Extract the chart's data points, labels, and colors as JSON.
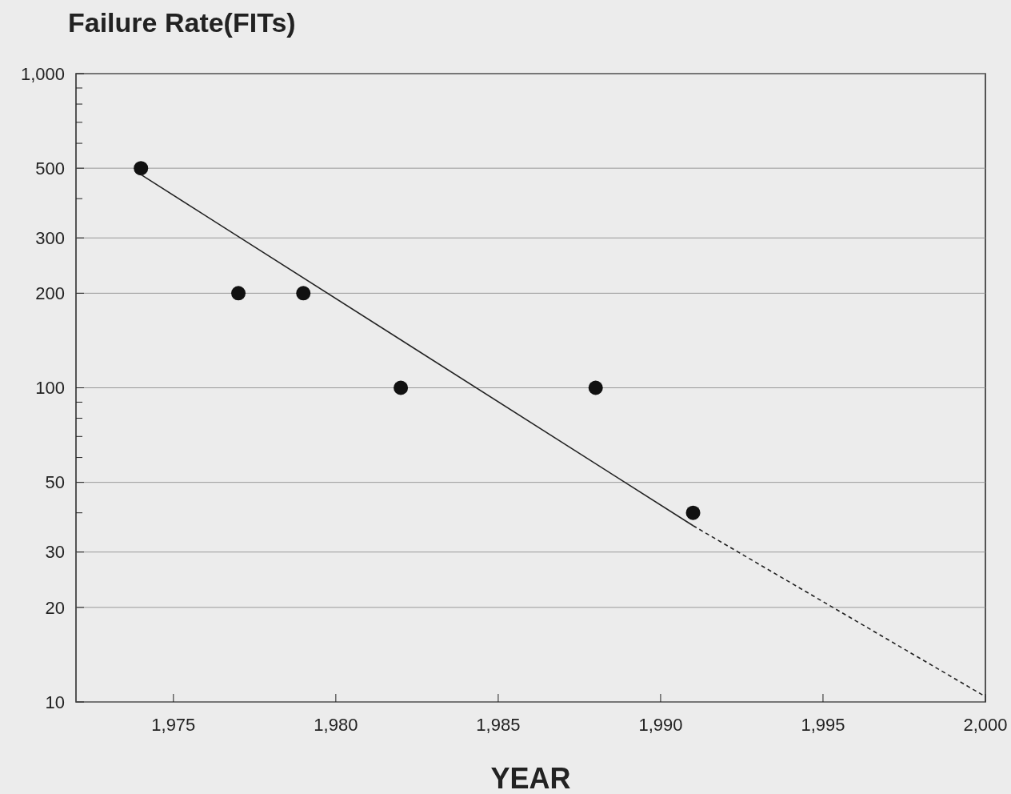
{
  "chart_data": {
    "type": "scatter",
    "title": "Failure Rate(FITs)",
    "xlabel": "YEAR",
    "log": "y",
    "grid": "y",
    "marker": "circle",
    "xlim": [
      1972,
      2000
    ],
    "xticks": [
      {
        "value": 1975,
        "label": "1,975"
      },
      {
        "value": 1980,
        "label": "1,980"
      },
      {
        "value": 1985,
        "label": "1,985"
      },
      {
        "value": 1990,
        "label": "1,990"
      },
      {
        "value": 1995,
        "label": "1,995"
      },
      {
        "value": 2000,
        "label": "2,000"
      }
    ],
    "ylim": [
      10,
      1000
    ],
    "yticks": [
      10,
      20,
      30,
      {
        "value": 40,
        "label": null
      },
      50,
      {
        "value": 60,
        "label": null
      },
      {
        "value": 70,
        "label": null
      },
      {
        "value": 80,
        "label": null
      },
      {
        "value": 90,
        "label": null
      },
      100,
      200,
      300,
      {
        "value": 400,
        "label": null
      },
      500,
      {
        "value": 600,
        "label": null
      },
      {
        "value": 700,
        "label": null
      },
      {
        "value": 800,
        "label": null
      },
      {
        "value": 900,
        "label": null
      },
      {
        "value": 1000,
        "label": "1,000"
      }
    ],
    "series": [
      {
        "color": "#111111",
        "x": [
          1974,
          1977,
          1979,
          1982,
          1988,
          1991
        ],
        "values": [
          500,
          200,
          200,
          100,
          100,
          40
        ]
      },
      {
        "type": "line",
        "color": "#222222",
        "line_style": "solid",
        "marker": "none",
        "x": [
          1974,
          1991
        ],
        "values": [
          477,
          36.4
        ]
      },
      {
        "type": "line",
        "color": "#222222",
        "line_style": "dashed",
        "marker": "none",
        "x": [
          1991,
          2000
        ],
        "values": [
          36.4,
          10.4
        ]
      }
    ]
  }
}
